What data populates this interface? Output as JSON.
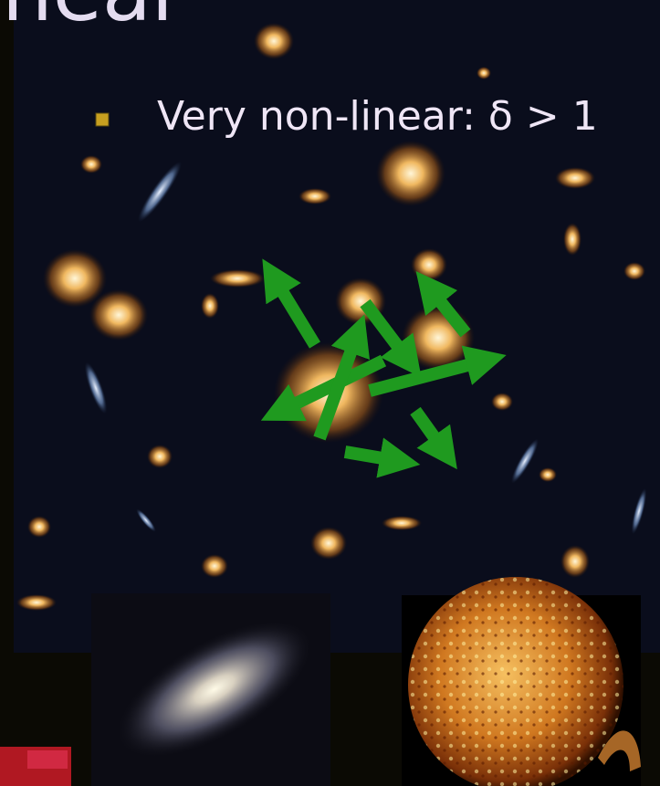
{
  "title": "near",
  "bullets": [
    "Very non-linear:  δ > 1"
  ]
}
